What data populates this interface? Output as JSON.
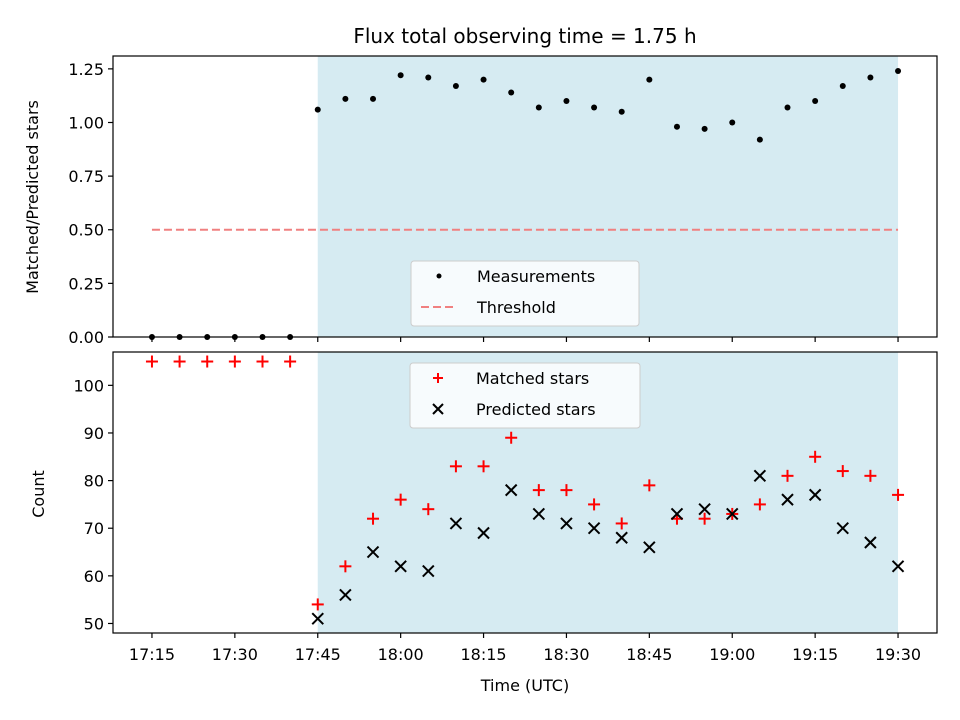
{
  "chart_data": [
    {
      "type": "scatter",
      "title": "Flux total observing time = 1.75 h",
      "ylabel": "Matched/Predicted stars",
      "xlabel": "",
      "ylim": [
        0.0,
        1.31
      ],
      "yticks": [
        "0.00",
        "0.25",
        "0.50",
        "0.75",
        "1.00",
        "1.25"
      ],
      "x": [
        "17:15",
        "17:20",
        "17:25",
        "17:30",
        "17:35",
        "17:40",
        "17:45",
        "17:50",
        "17:55",
        "18:00",
        "18:05",
        "18:10",
        "18:15",
        "18:20",
        "18:25",
        "18:30",
        "18:35",
        "18:40",
        "18:45",
        "18:50",
        "18:55",
        "19:00",
        "19:05",
        "19:10",
        "19:15",
        "19:20",
        "19:25",
        "19:30"
      ],
      "series": [
        {
          "name": "Measurements",
          "color": "#000000",
          "marker": "dot",
          "values": [
            0.0,
            0.0,
            0.0,
            0.0,
            0.0,
            0.0,
            1.06,
            1.11,
            1.11,
            1.22,
            1.21,
            1.17,
            1.2,
            1.14,
            1.07,
            1.1,
            1.07,
            1.05,
            1.2,
            0.98,
            0.97,
            1.0,
            0.92,
            1.07,
            1.1,
            1.17,
            1.21,
            1.24
          ]
        },
        {
          "name": "Threshold",
          "color": "#f08080",
          "style": "dashed",
          "x_range": [
            "17:15",
            "19:30"
          ],
          "value": 0.5
        }
      ],
      "shaded_region": {
        "from": "17:45",
        "to": "19:30",
        "color": "#add8e6"
      },
      "legend": "lower-center",
      "grid": false
    },
    {
      "type": "scatter",
      "ylabel": "Count",
      "xlabel": "Time (UTC)",
      "ylim": [
        48,
        107
      ],
      "yticks": [
        "50",
        "60",
        "70",
        "80",
        "90",
        "100"
      ],
      "xticks": [
        "17:15",
        "17:30",
        "17:45",
        "18:00",
        "18:15",
        "18:30",
        "18:45",
        "19:00",
        "19:15",
        "19:30"
      ],
      "x": [
        "17:15",
        "17:20",
        "17:25",
        "17:30",
        "17:35",
        "17:40",
        "17:45",
        "17:50",
        "17:55",
        "18:00",
        "18:05",
        "18:10",
        "18:15",
        "18:20",
        "18:25",
        "18:30",
        "18:35",
        "18:40",
        "18:45",
        "18:50",
        "18:55",
        "19:00",
        "19:05",
        "19:10",
        "19:15",
        "19:20",
        "19:25",
        "19:30"
      ],
      "series": [
        {
          "name": "Matched stars",
          "color": "#ff0000",
          "marker": "plus",
          "values": [
            105,
            105,
            105,
            105,
            105,
            105,
            54,
            62,
            72,
            76,
            74,
            83,
            83,
            89,
            78,
            78,
            75,
            71,
            79,
            72,
            72,
            73,
            75,
            81,
            85,
            82,
            81,
            77
          ]
        },
        {
          "name": "Predicted stars",
          "color": "#000000",
          "marker": "x",
          "values": [
            null,
            null,
            null,
            null,
            null,
            null,
            51,
            56,
            65,
            62,
            61,
            71,
            69,
            78,
            73,
            71,
            70,
            68,
            66,
            73,
            74,
            73,
            81,
            76,
            77,
            70,
            67,
            62
          ]
        }
      ],
      "shaded_region": {
        "from": "17:45",
        "to": "19:30",
        "color": "#add8e6"
      },
      "legend": "upper-center",
      "grid": false
    }
  ]
}
